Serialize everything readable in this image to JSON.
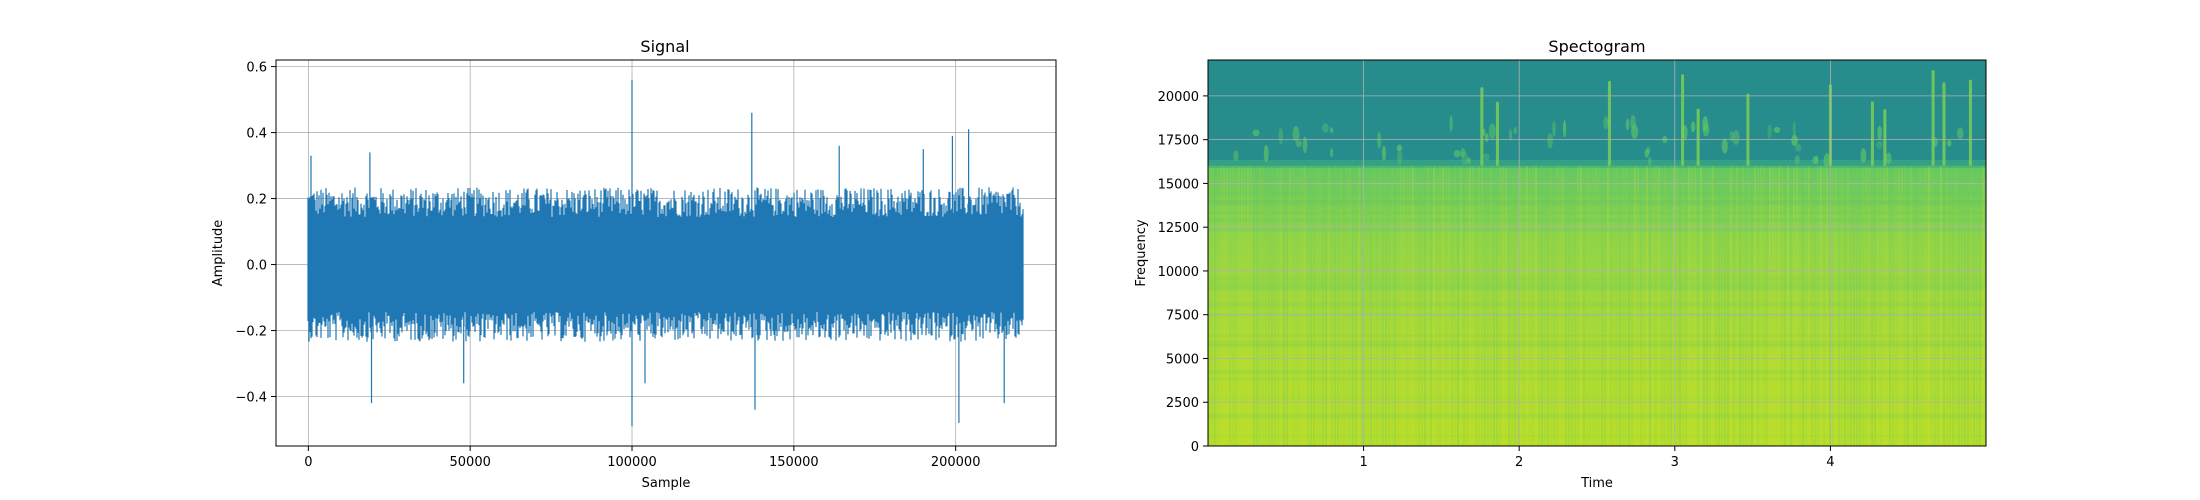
{
  "chart_data": [
    {
      "type": "line",
      "title": "Signal",
      "xlabel": "Sample",
      "ylabel": "Amplitude",
      "xlim": [
        -10000,
        231000
      ],
      "ylim": [
        -0.55,
        0.62
      ],
      "xticks": [
        0,
        50000,
        100000,
        150000,
        200000
      ],
      "yticks": [
        -0.4,
        -0.2,
        0.0,
        0.2,
        0.4,
        0.6
      ],
      "xtick_labels": [
        "0",
        "50000",
        "100000",
        "150000",
        "200000"
      ],
      "ytick_labels": [
        "−0.4",
        "−0.2",
        "0.0",
        "0.2",
        "0.4",
        "0.6"
      ],
      "grid": true,
      "color": "#1f77b4",
      "series": [
        {
          "n_samples": 220500,
          "typical_envelope": [
            -0.2,
            0.2
          ],
          "peaks": [
            {
              "x": 100000,
              "y": 0.56
            },
            {
              "x": 137000,
              "y": 0.46
            },
            {
              "x": 204000,
              "y": 0.41
            },
            {
              "x": 199000,
              "y": 0.39
            },
            {
              "x": 164000,
              "y": 0.36
            },
            {
              "x": 190000,
              "y": 0.35
            },
            {
              "x": 800,
              "y": 0.33
            },
            {
              "x": 19000,
              "y": 0.34
            },
            {
              "x": 100000,
              "y": -0.49
            },
            {
              "x": 201000,
              "y": -0.48
            },
            {
              "x": 138000,
              "y": -0.44
            },
            {
              "x": 19500,
              "y": -0.42
            },
            {
              "x": 215000,
              "y": -0.42
            },
            {
              "x": 48000,
              "y": -0.36
            },
            {
              "x": 104000,
              "y": -0.36
            }
          ]
        }
      ]
    },
    {
      "type": "heatmap",
      "title": "Spectogram",
      "xlabel": "Time",
      "ylabel": "Frequency",
      "xlim": [
        0.0,
        5.0
      ],
      "ylim": [
        0,
        22050
      ],
      "xticks": [
        1,
        2,
        3,
        4
      ],
      "yticks": [
        0,
        2500,
        5000,
        7500,
        10000,
        12500,
        15000,
        17500,
        20000
      ],
      "xtick_labels": [
        "1",
        "2",
        "3",
        "4"
      ],
      "ytick_labels": [
        "0",
        "2500",
        "5000",
        "7500",
        "10000",
        "12500",
        "15000",
        "17500",
        "20000"
      ],
      "grid": true,
      "colormap": [
        "#b8de29",
        "#7ad151",
        "#3aba76",
        "#1f9e89",
        "#26828e"
      ],
      "cutoff_frequency": 16000,
      "high_band_color": "#268d8c",
      "low_band_color": "#9fd93a",
      "transient_times": [
        1.76,
        1.86,
        2.58,
        3.05,
        3.15,
        3.47,
        4.0,
        4.27,
        4.35,
        4.66,
        4.73,
        4.9
      ]
    }
  ]
}
